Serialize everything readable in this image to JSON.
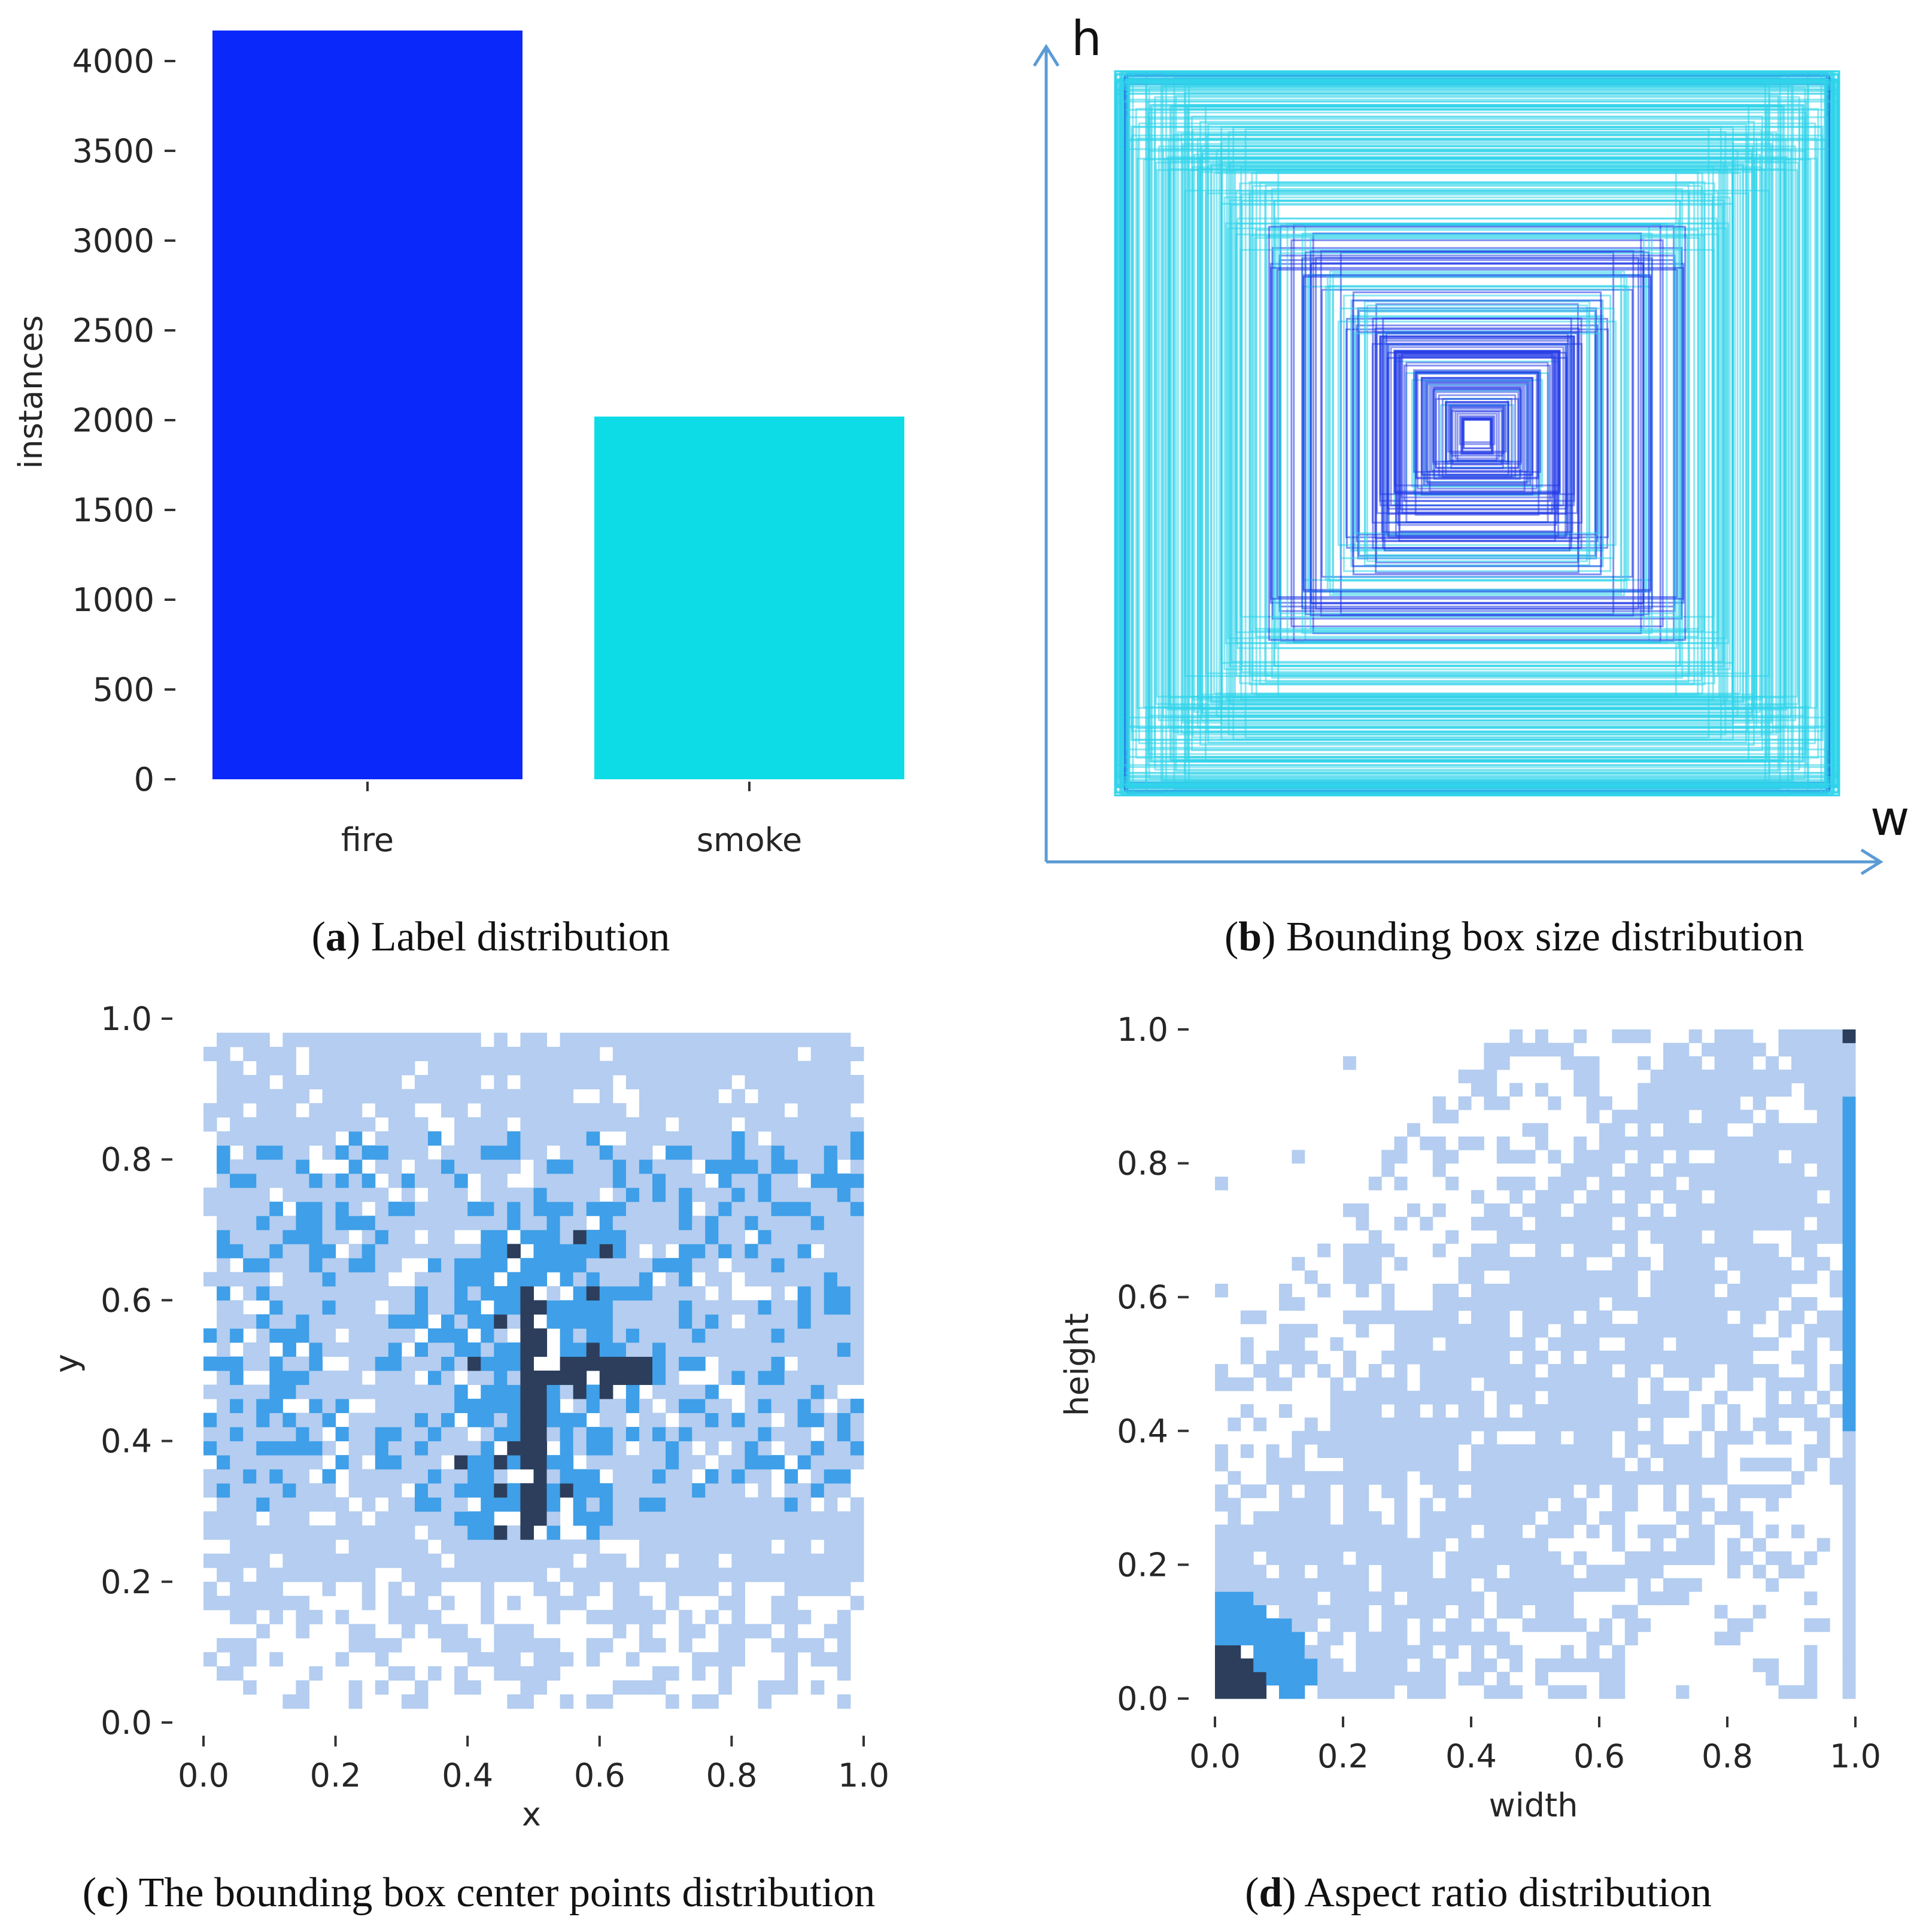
{
  "colors": {
    "fire": "#0a28fa",
    "smoke": "#0ddce6",
    "hist_low": "#b4cdf0",
    "hist_mid": "#3f9fe8",
    "hist_high": "#2c3e5c",
    "arrow": "#5b9bd5",
    "box_light": "#2fd3ea",
    "box_dark": "#1f36e6"
  },
  "chart_data": [
    {
      "panel": "a",
      "type": "bar",
      "caption_letter": "a",
      "caption_text": "Label distribution",
      "categories": [
        "fire",
        "smoke"
      ],
      "values": [
        4170,
        2020
      ],
      "ylabel": "instances",
      "xlabel": "",
      "ylim": [
        0,
        4200
      ],
      "yticks": [
        "0",
        "500",
        "1000",
        "1500",
        "2000",
        "2500",
        "3000",
        "3500",
        "4000"
      ]
    },
    {
      "panel": "b",
      "type": "box-overlay",
      "caption_letter": "b",
      "caption_text": "Bounding box size distribution",
      "xlabel": "w",
      "ylabel": "h",
      "note": "centered overlay of normalized bounding boxes (width, height)"
    },
    {
      "panel": "c",
      "type": "heatmap",
      "caption_letter": "c",
      "caption_text": "The bounding box center points distribution",
      "xlabel": "x",
      "ylabel": "y",
      "xlim": [
        0,
        1
      ],
      "ylim": [
        0,
        1
      ],
      "xticks": [
        "0.0",
        "0.2",
        "0.4",
        "0.6",
        "0.8",
        "1.0"
      ],
      "yticks": [
        "0.0",
        "0.2",
        "0.4",
        "0.6",
        "0.8",
        "1.0"
      ],
      "bins": 50
    },
    {
      "panel": "d",
      "type": "heatmap",
      "caption_letter": "d",
      "caption_text": "Aspect ratio distribution",
      "xlabel": "width",
      "ylabel": "height",
      "xlim": [
        0,
        1
      ],
      "ylim": [
        0,
        1
      ],
      "xticks": [
        "0.0",
        "0.2",
        "0.4",
        "0.6",
        "0.8",
        "1.0"
      ],
      "yticks": [
        "0.0",
        "0.2",
        "0.4",
        "0.6",
        "0.8",
        "1.0"
      ],
      "bins": 50
    }
  ]
}
